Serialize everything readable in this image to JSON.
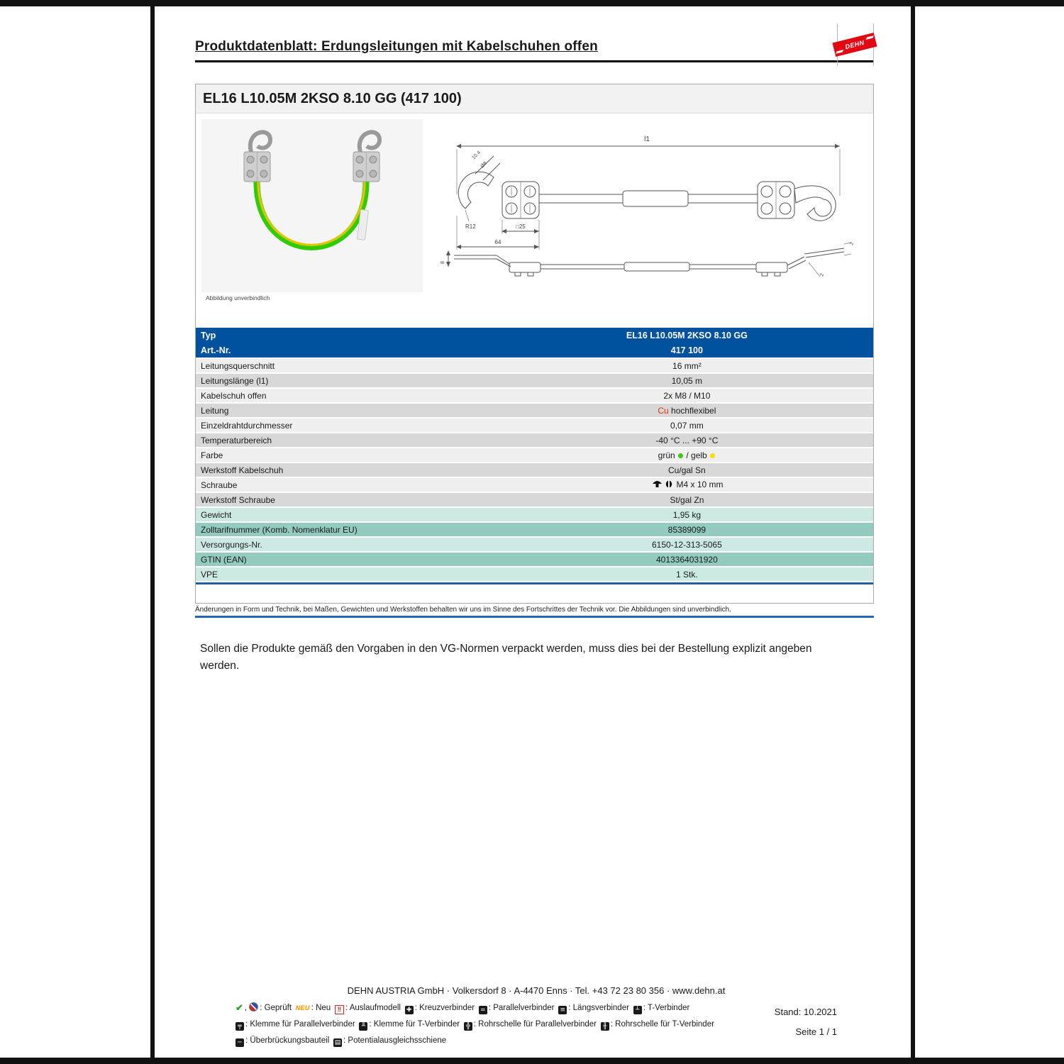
{
  "page": {
    "header_title": "Produktdatenblatt: Erdungsleitungen mit Kabelschuhen offen",
    "logo_text": "DEHN"
  },
  "product": {
    "title": "EL16 L10.05M 2KSO 8.10 GG (417 100)",
    "photo_caption": "Abbildung unverbindlich"
  },
  "drawing": {
    "dim_l1": "l1",
    "dim_104": "10.4",
    "dim_dia8": "Ø8",
    "dim_r12": "R12",
    "dim_sq25": "□25",
    "dim_64": "64",
    "dim_8": "8",
    "dim_2_top": "2",
    "dim_2_side": "2"
  },
  "table": {
    "header": {
      "typ_label": "Typ",
      "typ_value": "EL16 L10.05M 2KSO 8.10 GG",
      "art_label": "Art.-Nr.",
      "art_value": "417 100"
    },
    "rows": [
      {
        "label": "Leitungsquerschnitt",
        "variant": "light",
        "parts": [
          {
            "t": "text",
            "v": "16 mm²"
          }
        ]
      },
      {
        "label": "Leitungslänge (l1)",
        "variant": "dark",
        "parts": [
          {
            "t": "text",
            "v": "10,05 m"
          }
        ]
      },
      {
        "label": "Kabelschuh offen",
        "variant": "light",
        "parts": [
          {
            "t": "text",
            "v": "2x M8 / M10"
          }
        ]
      },
      {
        "label": "Leitung",
        "variant": "dark",
        "parts": [
          {
            "t": "red",
            "v": "Cu"
          },
          {
            "t": "text",
            "v": " hochflexibel"
          }
        ]
      },
      {
        "label": "Einzeldrahtdurchmesser",
        "variant": "light",
        "parts": [
          {
            "t": "text",
            "v": "0,07 mm"
          }
        ]
      },
      {
        "label": "Temperaturbereich",
        "variant": "dark",
        "parts": [
          {
            "t": "text",
            "v": "-40 °C ... +90 °C"
          }
        ]
      },
      {
        "label": "Farbe",
        "variant": "light",
        "parts": [
          {
            "t": "text",
            "v": "grün "
          },
          {
            "t": "dot",
            "color": "#35cc0a"
          },
          {
            "t": "text",
            "v": " / gelb "
          },
          {
            "t": "dot",
            "color": "#ffdd00"
          }
        ]
      },
      {
        "label": "Werkstoff Kabelschuh",
        "variant": "dark",
        "parts": [
          {
            "t": "text",
            "v": "Cu/gal Sn"
          }
        ]
      },
      {
        "label": "Schraube",
        "variant": "light",
        "parts": [
          {
            "t": "icon",
            "name": "mushroom-head-screw-icon"
          },
          {
            "t": "icon",
            "name": "slotted-drive-icon"
          },
          {
            "t": "text",
            "v": " M4 x 10 mm"
          }
        ]
      },
      {
        "label": "Werkstoff Schraube",
        "variant": "dark",
        "parts": [
          {
            "t": "text",
            "v": "St/gal Zn"
          }
        ]
      },
      {
        "label": "Gewicht",
        "variant": "teal-light",
        "parts": [
          {
            "t": "text",
            "v": "1,95 kg"
          }
        ]
      },
      {
        "label": "Zolltarifnummer (Komb. Nomenklatur EU)",
        "variant": "teal-dark",
        "parts": [
          {
            "t": "text",
            "v": "85389099"
          }
        ]
      },
      {
        "label": "Versorgungs-Nr.",
        "variant": "teal-light",
        "parts": [
          {
            "t": "text",
            "v": "6150-12-313-5065"
          }
        ]
      },
      {
        "label": "GTIN (EAN)",
        "variant": "teal-dark",
        "parts": [
          {
            "t": "text",
            "v": "4013364031920"
          }
        ]
      },
      {
        "label": "VPE",
        "variant": "teal-light",
        "parts": [
          {
            "t": "text",
            "v": "1 Stk."
          }
        ]
      }
    ]
  },
  "notes": {
    "disclaimer": "Änderungen in Form und Technik, bei Maßen, Gewichten und Werkstoffen behalten wir uns im Sinne des Fortschrittes der Technik vor. Die Abbildungen sind unverbindlich.",
    "vg_note": "Sollen die Produkte gemäß den Vorgaben in den VG-Normen verpackt werden, muss dies bei der Bestellung explizit angeben werden."
  },
  "footer": {
    "company_line": "DEHN AUSTRIA GmbH · Volkersdorf 8 · A-4470 Enns · Tel. +43 72 23 80 356 · www.dehn.at",
    "stand": "Stand: 10.2021",
    "page_no": "Seite 1 / 1",
    "legend_lines": [
      [
        {
          "icons": [
            "check-icon",
            "seal-icon"
          ],
          "label": "Geprüft"
        },
        {
          "icons": [
            "neu-icon"
          ],
          "label": "Neu"
        },
        {
          "icons": [
            "auslaufmodell-icon"
          ],
          "label": "Auslaufmodell"
        },
        {
          "icons": [
            "kreuzverbinder-icon"
          ],
          "label": "Kreuzverbinder"
        },
        {
          "icons": [
            "parallelverbinder-icon"
          ],
          "label": "Parallelverbinder"
        },
        {
          "icons": [
            "laengsverbinder-icon"
          ],
          "label": "Längsverbinder"
        },
        {
          "icons": [
            "t-verbinder-icon"
          ],
          "label": "T-Verbinder"
        }
      ],
      [
        {
          "icons": [
            "klemme-parallelverbinder-icon"
          ],
          "label": "Klemme für Parallelverbinder"
        },
        {
          "icons": [
            "klemme-t-verbinder-icon"
          ],
          "label": "Klemme für T-Verbinder"
        },
        {
          "icons": [
            "rohrschelle-parallelverbinder-icon"
          ],
          "label": "Rohrschelle für Parallelverbinder"
        },
        {
          "icons": [
            "rohrschelle-t-verbinder-icon"
          ],
          "label": "Rohrschelle für T-Verbinder"
        }
      ],
      [
        {
          "icons": [
            "ueberbrueckungsbauteil-icon"
          ],
          "label": "Überbrückungsbauteil"
        },
        {
          "icons": [
            "potentialausgleichsschiene-icon"
          ],
          "label": "Potentialausgleichsschiene"
        }
      ]
    ]
  }
}
